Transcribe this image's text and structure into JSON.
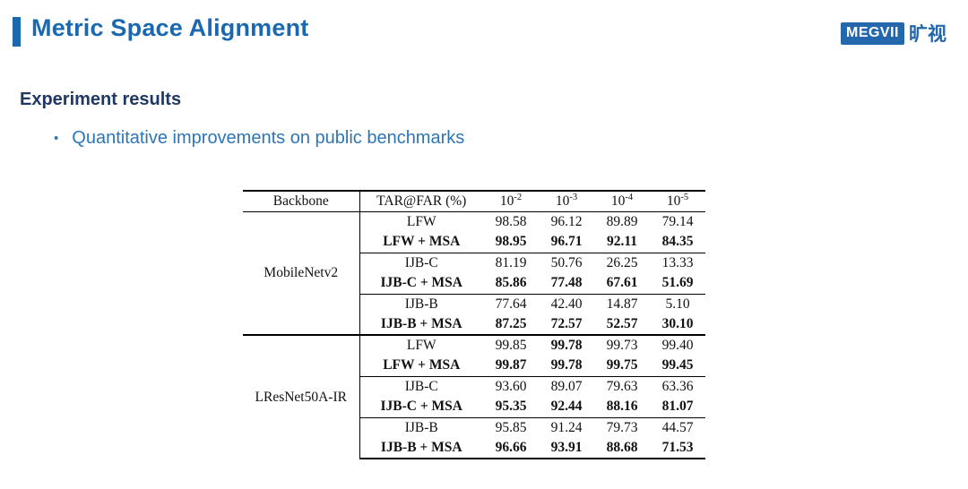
{
  "slide": {
    "title": "Metric Space Alignment",
    "section_heading": "Experiment results",
    "bullet": "Quantitative improvements on public benchmarks"
  },
  "logo": {
    "brand": "MEGVII",
    "brand_cn": "旷视"
  },
  "colors": {
    "title_blue": "#1a68b0",
    "heading_navy": "#1f3864",
    "bullet_blue": "#2e75b6",
    "logo_blue": "#2467ad"
  },
  "table": {
    "header": {
      "backbone": "Backbone",
      "metric": "TAR@FAR (%)",
      "far_base": "10",
      "far_exponents": [
        "-2",
        "-3",
        "-4",
        "-5"
      ]
    },
    "groups": [
      {
        "backbone": "MobileNetv2",
        "subgroups": [
          {
            "rows": [
              {
                "label": "LFW",
                "label_bold": false,
                "values": [
                  "98.58",
                  "96.12",
                  "89.89",
                  "79.14"
                ],
                "bold": [
                  false,
                  false,
                  false,
                  false
                ]
              },
              {
                "label": "LFW + MSA",
                "label_bold": true,
                "values": [
                  "98.95",
                  "96.71",
                  "92.11",
                  "84.35"
                ],
                "bold": [
                  true,
                  true,
                  true,
                  true
                ]
              }
            ]
          },
          {
            "rows": [
              {
                "label": "IJB-C",
                "label_bold": false,
                "values": [
                  "81.19",
                  "50.76",
                  "26.25",
                  "13.33"
                ],
                "bold": [
                  false,
                  false,
                  false,
                  false
                ]
              },
              {
                "label": "IJB-C + MSA",
                "label_bold": true,
                "values": [
                  "85.86",
                  "77.48",
                  "67.61",
                  "51.69"
                ],
                "bold": [
                  true,
                  true,
                  true,
                  true
                ]
              }
            ]
          },
          {
            "rows": [
              {
                "label": "IJB-B",
                "label_bold": false,
                "values": [
                  "77.64",
                  "42.40",
                  "14.87",
                  "5.10"
                ],
                "bold": [
                  false,
                  false,
                  false,
                  false
                ]
              },
              {
                "label": "IJB-B + MSA",
                "label_bold": true,
                "values": [
                  "87.25",
                  "72.57",
                  "52.57",
                  "30.10"
                ],
                "bold": [
                  true,
                  true,
                  true,
                  true
                ]
              }
            ]
          }
        ]
      },
      {
        "backbone": "LResNet50A-IR",
        "subgroups": [
          {
            "rows": [
              {
                "label": "LFW",
                "label_bold": false,
                "values": [
                  "99.85",
                  "99.78",
                  "99.73",
                  "99.40"
                ],
                "bold": [
                  false,
                  true,
                  false,
                  false
                ]
              },
              {
                "label": "LFW + MSA",
                "label_bold": true,
                "values": [
                  "99.87",
                  "99.78",
                  "99.75",
                  "99.45"
                ],
                "bold": [
                  true,
                  true,
                  true,
                  true
                ]
              }
            ]
          },
          {
            "rows": [
              {
                "label": "IJB-C",
                "label_bold": false,
                "values": [
                  "93.60",
                  "89.07",
                  "79.63",
                  "63.36"
                ],
                "bold": [
                  false,
                  false,
                  false,
                  false
                ]
              },
              {
                "label": "IJB-C + MSA",
                "label_bold": true,
                "values": [
                  "95.35",
                  "92.44",
                  "88.16",
                  "81.07"
                ],
                "bold": [
                  true,
                  true,
                  true,
                  true
                ]
              }
            ]
          },
          {
            "rows": [
              {
                "label": "IJB-B",
                "label_bold": false,
                "values": [
                  "95.85",
                  "91.24",
                  "79.73",
                  "44.57"
                ],
                "bold": [
                  false,
                  false,
                  false,
                  false
                ]
              },
              {
                "label": "IJB-B + MSA",
                "label_bold": true,
                "values": [
                  "96.66",
                  "93.91",
                  "88.68",
                  "71.53"
                ],
                "bold": [
                  true,
                  true,
                  true,
                  true
                ]
              }
            ]
          }
        ]
      }
    ]
  }
}
